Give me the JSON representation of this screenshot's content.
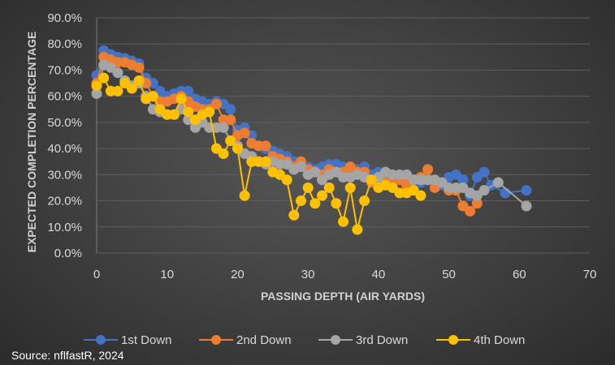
{
  "source": "Source: nflfastR, 2024",
  "chart_data": {
    "type": "scatter",
    "title": "",
    "xlabel": "PASSING DEPTH (AIR YARDS)",
    "ylabel": "EXPECTED COMPLETION PERCENTAGE",
    "xlim": [
      0,
      70
    ],
    "ylim": [
      0,
      0.9
    ],
    "xticks": [
      0,
      10,
      20,
      30,
      40,
      50,
      60,
      70
    ],
    "xtick_labels": [
      "0",
      "10",
      "20",
      "30",
      "40",
      "50",
      "60",
      "70"
    ],
    "yticks": [
      0,
      0.1,
      0.2,
      0.3,
      0.4,
      0.5,
      0.6,
      0.7,
      0.8,
      0.9
    ],
    "ytick_labels": [
      "0.0%",
      "10.0%",
      "20.0%",
      "30.0%",
      "40.0%",
      "50.0%",
      "60.0%",
      "70.0%",
      "80.0%",
      "90.0%"
    ],
    "grid": "horizontal",
    "legend_position": "bottom",
    "series": [
      {
        "name": "1st Down",
        "color": "#4472c4",
        "x": [
          0,
          1,
          2,
          3,
          4,
          5,
          6,
          7,
          8,
          9,
          10,
          11,
          12,
          13,
          14,
          15,
          16,
          17,
          18,
          19,
          20,
          21,
          22,
          23,
          24,
          25,
          26,
          27,
          28,
          29,
          30,
          31,
          32,
          33,
          34,
          35,
          36,
          37,
          38,
          39,
          40,
          41,
          42,
          43,
          44,
          45,
          46,
          47,
          48,
          49,
          50,
          51,
          52,
          53,
          54,
          55,
          56,
          58,
          61
        ],
        "y": [
          0.68,
          0.775,
          0.76,
          0.75,
          0.745,
          0.735,
          0.725,
          0.67,
          0.65,
          0.62,
          0.6,
          0.61,
          0.62,
          0.62,
          0.59,
          0.58,
          0.57,
          0.58,
          0.57,
          0.55,
          0.47,
          0.48,
          0.45,
          0.41,
          0.4,
          0.39,
          0.38,
          0.37,
          0.35,
          0.34,
          0.33,
          0.32,
          0.33,
          0.34,
          0.34,
          0.33,
          0.32,
          0.32,
          0.33,
          0.3,
          0.31,
          0.3,
          0.29,
          0.3,
          0.28,
          0.28,
          0.27,
          0.28,
          0.27,
          0.26,
          0.29,
          0.3,
          0.28,
          0.22,
          0.29,
          0.31,
          0.26,
          0.23,
          0.24
        ]
      },
      {
        "name": "2nd Down",
        "color": "#ed7d31",
        "x": [
          0,
          1,
          2,
          3,
          4,
          5,
          6,
          7,
          8,
          9,
          10,
          11,
          12,
          13,
          14,
          15,
          16,
          17,
          18,
          19,
          20,
          21,
          22,
          23,
          24,
          25,
          26,
          27,
          28,
          29,
          30,
          31,
          32,
          33,
          34,
          35,
          36,
          37,
          38,
          39,
          40,
          41,
          42,
          43,
          44,
          45,
          46,
          47,
          48,
          49,
          50,
          51,
          52,
          53,
          54
        ],
        "y": [
          0.65,
          0.75,
          0.74,
          0.73,
          0.73,
          0.72,
          0.71,
          0.65,
          0.6,
          0.58,
          0.58,
          0.59,
          0.6,
          0.58,
          0.56,
          0.55,
          0.55,
          0.57,
          0.51,
          0.51,
          0.45,
          0.46,
          0.42,
          0.41,
          0.41,
          0.37,
          0.36,
          0.35,
          0.33,
          0.35,
          0.32,
          0.31,
          0.3,
          0.32,
          0.31,
          0.31,
          0.33,
          0.31,
          0.31,
          0.27,
          0.28,
          0.27,
          0.27,
          0.28,
          0.26,
          0.28,
          0.29,
          0.32,
          0.25,
          0.27,
          0.24,
          0.24,
          0.18,
          0.16,
          0.19
        ]
      },
      {
        "name": "3rd Down",
        "color": "#a5a5a5",
        "x": [
          0,
          1,
          2,
          3,
          4,
          5,
          6,
          7,
          8,
          9,
          10,
          11,
          12,
          13,
          14,
          15,
          16,
          17,
          18,
          19,
          20,
          21,
          22,
          23,
          24,
          25,
          26,
          27,
          28,
          29,
          30,
          31,
          32,
          33,
          34,
          35,
          36,
          37,
          38,
          39,
          40,
          41,
          42,
          43,
          44,
          45,
          46,
          47,
          48,
          49,
          50,
          51,
          52,
          53,
          54,
          55,
          57,
          61
        ],
        "y": [
          0.61,
          0.72,
          0.71,
          0.69,
          0.66,
          0.64,
          0.65,
          0.6,
          0.55,
          0.54,
          0.53,
          0.53,
          0.55,
          0.51,
          0.48,
          0.5,
          0.48,
          0.48,
          0.48,
          0.43,
          0.41,
          0.38,
          0.37,
          0.35,
          0.34,
          0.35,
          0.34,
          0.34,
          0.32,
          0.33,
          0.3,
          0.31,
          0.28,
          0.3,
          0.31,
          0.29,
          0.29,
          0.3,
          0.29,
          0.28,
          0.29,
          0.31,
          0.3,
          0.3,
          0.3,
          0.28,
          0.28,
          0.28,
          0.28,
          0.27,
          0.25,
          0.25,
          0.25,
          0.23,
          0.22,
          0.24,
          0.27,
          0.18
        ]
      },
      {
        "name": "4th Down",
        "color": "#ffc000",
        "x": [
          0,
          1,
          2,
          3,
          4,
          5,
          6,
          7,
          8,
          9,
          10,
          11,
          12,
          13,
          14,
          15,
          16,
          17,
          18,
          19,
          20,
          21,
          22,
          23,
          24,
          25,
          26,
          27,
          28,
          29,
          30,
          31,
          32,
          33,
          34,
          35,
          36,
          37,
          38,
          39,
          40,
          41,
          42,
          43,
          44,
          45,
          46
        ],
        "y": [
          0.64,
          0.67,
          0.62,
          0.62,
          0.65,
          0.63,
          0.66,
          0.59,
          0.6,
          0.55,
          0.53,
          0.53,
          0.59,
          0.54,
          0.51,
          0.53,
          0.54,
          0.4,
          0.38,
          0.43,
          0.4,
          0.22,
          0.35,
          0.35,
          0.35,
          0.31,
          0.3,
          0.28,
          0.145,
          0.2,
          0.25,
          0.19,
          0.22,
          0.25,
          0.19,
          0.12,
          0.25,
          0.09,
          0.2,
          0.28,
          0.25,
          0.26,
          0.25,
          0.23,
          0.23,
          0.24,
          0.22
        ]
      }
    ]
  }
}
